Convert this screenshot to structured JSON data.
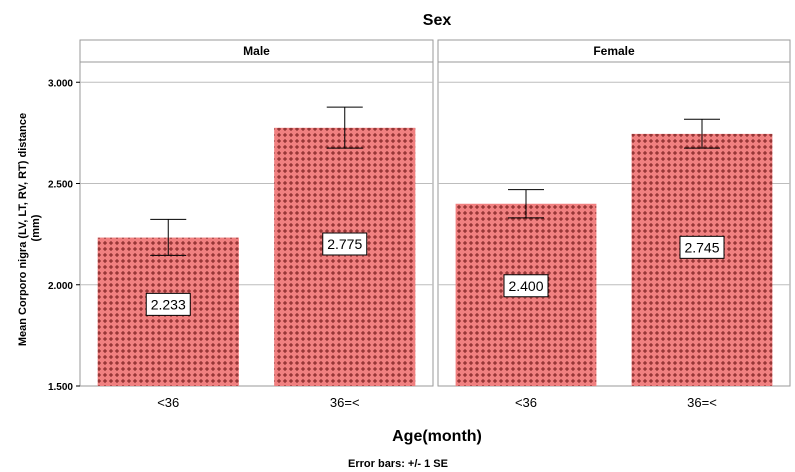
{
  "chart_data": {
    "type": "bar",
    "title": "Sex",
    "xlabel": "Age(month)",
    "ylabel": "Mean Corporo nigra (LV, LT, RV, RT) distance (mm)",
    "footnote": "Error bars: +/- 1 SE",
    "ylim": [
      1.5,
      3.1
    ],
    "yticks": [
      "1.500",
      "2.000",
      "2.500",
      "3.000"
    ],
    "categories": [
      "<36",
      "36=<"
    ],
    "grid": true,
    "bar_color": "#f08080",
    "pattern_color": "#7a1f1f",
    "panels": [
      {
        "name": "Male",
        "values": [
          2.233,
          2.775
        ],
        "labels": [
          "2.233",
          "2.775"
        ],
        "error_low": [
          2.145,
          2.675
        ],
        "error_high": [
          2.323,
          2.877
        ]
      },
      {
        "name": "Female",
        "values": [
          2.4,
          2.745
        ],
        "labels": [
          "2.400",
          "2.745"
        ],
        "error_low": [
          2.33,
          2.675
        ],
        "error_high": [
          2.47,
          2.817
        ]
      }
    ]
  }
}
